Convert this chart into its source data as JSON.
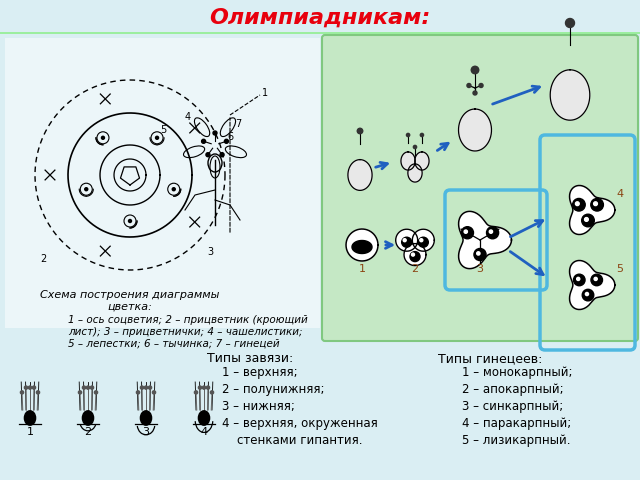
{
  "title": "Олимпиадникам:",
  "title_color": "#e8000d",
  "bg_color": "#daeef3",
  "green_panel_color": "#c5e8c5",
  "blue_box_color": "#4fb8e0",
  "schema_title": "Схема построения диаграммы\nцветка:",
  "schema_text": "1 – ось соцветия; 2 – прицветник (кроющий\nлист); 3 – прицветнички; 4 – чашелистики;\n5 – лепестки; 6 – тычинка; 7 – гинецей",
  "zavyaz_title": "Типы завязи:",
  "zavyaz_items": [
    "1 – верхняя;",
    "2 – полунижняя;",
    "3 – нижняя;",
    "4 – верхняя, окруженная",
    "    стенками гипантия."
  ],
  "ginecei_title": "Типы гинецеев:",
  "ginecei_items": [
    "1 – монокарпный;",
    "2 – апокарпный;",
    "3 – синкарпный;",
    "4 – паракарпный;",
    "5 – лизикарпный."
  ]
}
